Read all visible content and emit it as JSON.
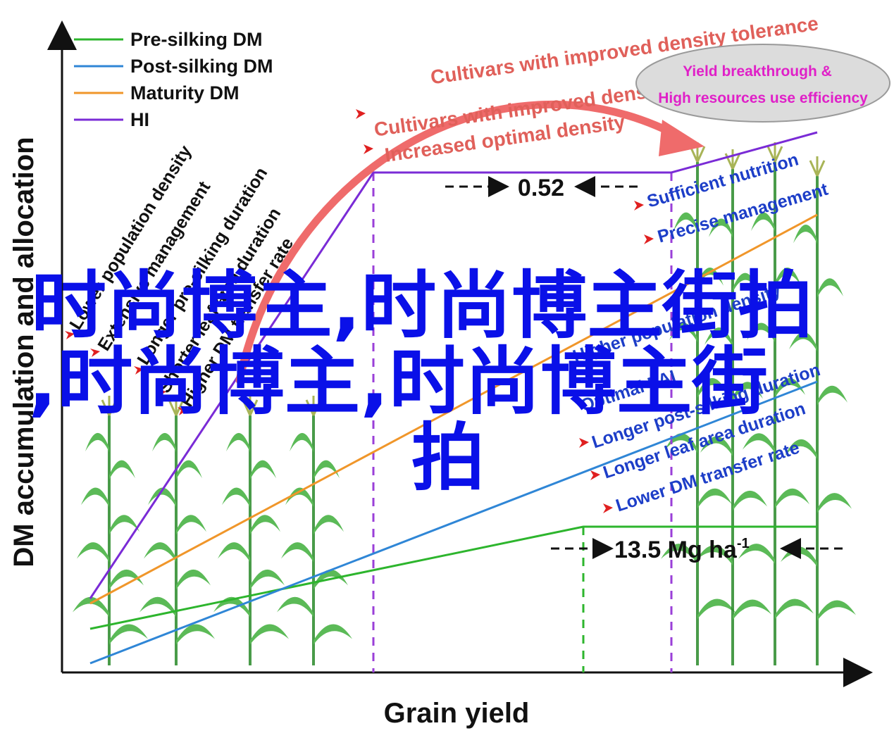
{
  "legend": [
    {
      "label": "Pre-silking DM",
      "color": "#2db52d"
    },
    {
      "label": "Post-silking DM",
      "color": "#2f86d6"
    },
    {
      "label": "Maturity DM",
      "color": "#f0962a"
    },
    {
      "label": "HI",
      "color": "#7a2bd6"
    }
  ],
  "axes": {
    "y_title": "DM accumulation and allocation",
    "x_title": "Grain yield"
  },
  "value_labels": {
    "hi_gap": "0.52",
    "dm_value": "13.5 Mg ha",
    "dm_exp": "-1"
  },
  "red_notes": [
    "Cultivars with improved density tolerance",
    "Cultivars with improved density",
    "Increased optimal density"
  ],
  "ellipse_note": [
    "Yield breakthrough &",
    "High resources use efficiency"
  ],
  "left_notes": [
    "Lower population density",
    "Extensive management",
    "Longer pre-silking duration",
    "Shorter leaf area duration",
    "Higher DM transfer rate"
  ],
  "right_notes_top": [
    "Sufficient nutrition",
    "Precise management"
  ],
  "right_notes_bottom": [
    "Higher population density",
    "Optimal LAI",
    "Longer post-silking duration",
    "Longer leaf area duration",
    "Lower DM transfer rate"
  ],
  "overlay_text": [
    "时尚博主,时尚博主街拍",
    ",时尚博主,时尚博主街",
    "拍"
  ],
  "colors": {
    "pre": "#2db52d",
    "post": "#2f86d6",
    "maturity": "#f0962a",
    "hi": "#7a2bd6",
    "arrow_red": "#ef6b6b",
    "plant": "#3fae3a",
    "plant_dark": "#2a8a2a"
  }
}
